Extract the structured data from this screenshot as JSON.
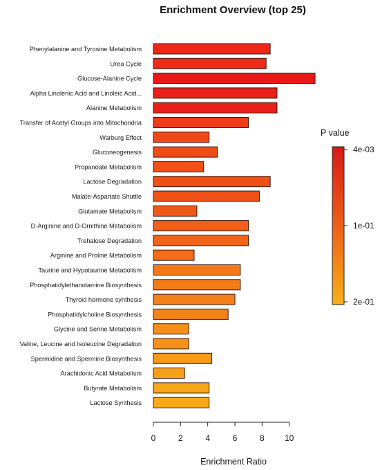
{
  "chart_data": {
    "type": "bar",
    "orientation": "horizontal",
    "title": "Enrichment Overview (top 25)",
    "xlabel": "Enrichment Ratio",
    "ylabel": "",
    "xlim": [
      0,
      12
    ],
    "xticks": [
      0,
      2,
      4,
      6,
      8,
      10
    ],
    "categories": [
      "Phenylalanine and Tyrosine Metabolism",
      "Urea Cycle",
      "Glucose-Alanine Cycle",
      "Alpha Linolenic Acid and Linoleic Acid...",
      "Alanine Metabolism",
      "Transfer of Acetyl Groups into Mitochondria",
      "Warburg Effect",
      "Gluconeogenesis",
      "Propanoate Metabolism",
      "Lactose Degradation",
      "Malate-Aspartate Shuttle",
      "Glutamate Metabolism",
      "D-Arginine and D-Ornithine Metabolism",
      "Trehalose Degradation",
      "Arginine and Proline Metabolism",
      "Taurine and Hypotaurine Metabolism",
      "Phosphatidylethanolamine Biosynthesis",
      "Thyroid hormone synthesis",
      "Phosphatidylcholine Biosynthesis",
      "Glycine and Serine Metabolism",
      "Valine, Leucine and Isoleucine Degradation",
      "Spermidine and Spermine Biosynthesis",
      "Arachidonic Acid Metabolism",
      "Butyrate Metabolism",
      "Lactose Synthesis"
    ],
    "values": [
      8.6,
      8.3,
      11.9,
      9.1,
      9.1,
      7.0,
      4.1,
      4.7,
      3.7,
      8.6,
      7.8,
      3.2,
      7.0,
      7.0,
      3.0,
      6.4,
      6.4,
      6.0,
      5.5,
      2.6,
      2.6,
      4.3,
      2.3,
      4.1,
      4.1
    ],
    "colors": [
      "#ee2818",
      "#ee2a18",
      "#e81818",
      "#e82018",
      "#e82018",
      "#ec3c18",
      "#f04818",
      "#f04c18",
      "#f05018",
      "#f05018",
      "#f05218",
      "#f05818",
      "#f26018",
      "#f26418",
      "#f46c18",
      "#f47818",
      "#f47c18",
      "#f47e18",
      "#f48418",
      "#f69018",
      "#f69018",
      "#f69a18",
      "#f6a018",
      "#f6a818",
      "#f6aa18"
    ],
    "legend": {
      "title": "P value",
      "ticks": [
        "4e-03",
        "1e-01",
        "2e-01"
      ],
      "gradient": [
        "#d81818",
        "#ee6018",
        "#f6b018"
      ],
      "placement": "right"
    }
  }
}
